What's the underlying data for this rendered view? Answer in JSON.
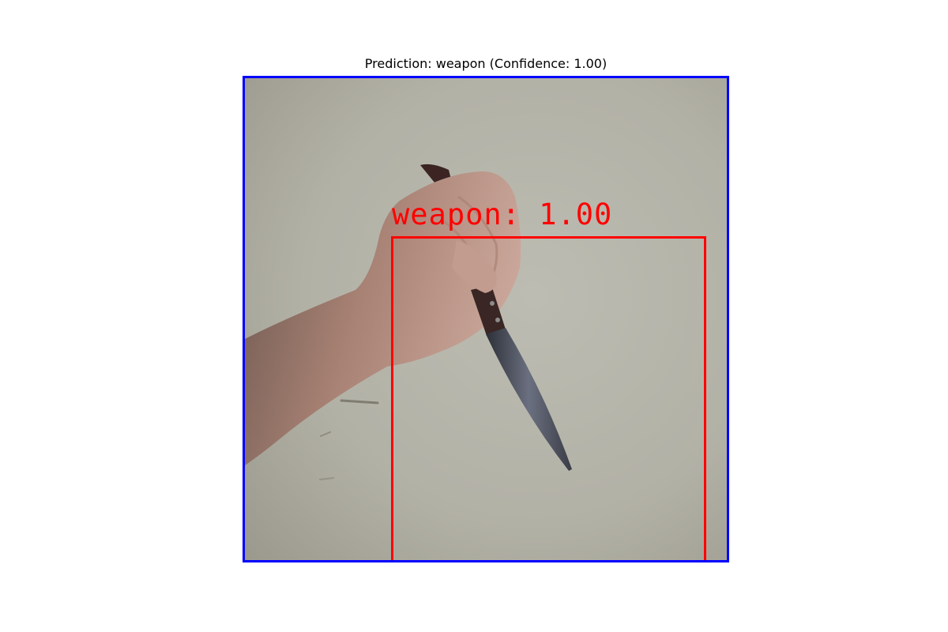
{
  "figure": {
    "title": "Prediction: weapon (Confidence: 1.00)"
  },
  "detection": {
    "label": "weapon: 1.00",
    "class": "weapon",
    "confidence": 1.0,
    "box_color": "#ff0000"
  },
  "frame": {
    "border_color": "#0000ff"
  },
  "scene": {
    "wall_color": "#b9b8ae",
    "skin_color": "#c9a79a",
    "blade_color": "#4a4e58",
    "handle_color": "#3a2624"
  }
}
